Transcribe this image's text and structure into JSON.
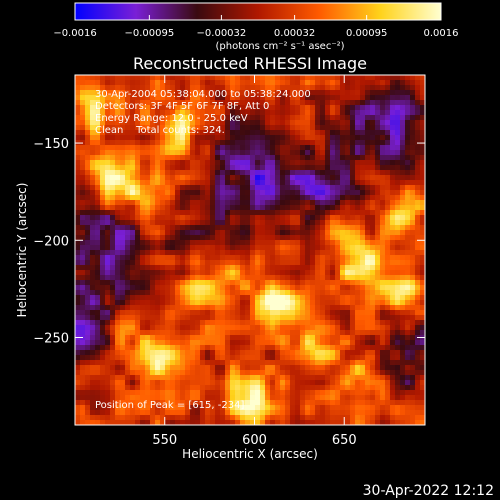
{
  "chart_data": {
    "type": "heatmap",
    "title": "Reconstructed RHESSI Image",
    "xlabel": "Heliocentric X (arcsec)",
    "ylabel": "Heliocentric Y (arcsec)",
    "xlim": [
      500,
      695
    ],
    "ylim": [
      -295,
      -115
    ],
    "x_ticks": [
      {
        "value": 550,
        "label": "550"
      },
      {
        "value": 600,
        "label": "600"
      },
      {
        "value": 650,
        "label": "650"
      }
    ],
    "y_ticks": [
      {
        "value": -150,
        "label": "−150"
      },
      {
        "value": -200,
        "label": "−200"
      },
      {
        "value": -250,
        "label": "−250"
      }
    ],
    "colorbar": {
      "min": -0.0016,
      "max": 0.0016,
      "ticks": [
        {
          "value": -0.0016,
          "label": "−0.0016"
        },
        {
          "value": -0.00095,
          "label": "−0.00095"
        },
        {
          "value": -0.00032,
          "label": "−0.00032"
        },
        {
          "value": 0.00032,
          "label": "0.00032"
        },
        {
          "value": 0.00095,
          "label": "0.00095"
        },
        {
          "value": 0.0016,
          "label": "0.0016"
        }
      ],
      "units": "(photons cm⁻² s⁻¹ asec⁻²)",
      "colors": [
        "#0000ff",
        "#7a1fd6",
        "#3a0a10",
        "#b01800",
        "#ff5a00",
        "#ffd21a",
        "#ffffd0"
      ]
    },
    "grid": false,
    "annotations": {
      "time_range": "30-Apr-2004 05:38:04.000 to 05:38:24.000",
      "detectors": "Detectors: 3F 4F 5F 6F 7F 8F, Att 0",
      "energy_range": "Energy Range: 12.0 - 25.0 keV",
      "clean": "Clean    Total counts: 324.",
      "peak": "Position of Peak = [615, -234]"
    },
    "hot_spots": [
      {
        "x": 615,
        "y": -234,
        "value": 0.0016
      },
      {
        "x": 548,
        "y": -260,
        "value": 0.0012
      },
      {
        "x": 598,
        "y": -280,
        "value": 0.0015
      },
      {
        "x": 660,
        "y": -212,
        "value": 0.0013
      },
      {
        "x": 520,
        "y": -170,
        "value": 0.00115
      },
      {
        "x": 556,
        "y": -143,
        "value": 0.001
      },
      {
        "x": 540,
        "y": -178,
        "value": 0.0011
      },
      {
        "x": 685,
        "y": -228,
        "value": 0.0011
      },
      {
        "x": 682,
        "y": -186,
        "value": 0.001
      },
      {
        "x": 588,
        "y": -213,
        "value": 0.0009
      },
      {
        "x": 635,
        "y": -255,
        "value": 0.00085
      },
      {
        "x": 570,
        "y": -224,
        "value": 0.0008
      },
      {
        "x": 513,
        "y": -134,
        "value": 0.0009
      },
      {
        "x": 644,
        "y": -196,
        "value": 0.0009
      },
      {
        "x": 660,
        "y": -272,
        "value": 0.0007
      },
      {
        "x": 527,
        "y": -246,
        "value": 0.0006
      }
    ],
    "cold_spots": [
      {
        "x": 600,
        "y": -160,
        "value": -0.0012
      },
      {
        "x": 640,
        "y": -175,
        "value": -0.001
      },
      {
        "x": 673,
        "y": -138,
        "value": -0.0011
      },
      {
        "x": 505,
        "y": -240,
        "value": -0.0011
      },
      {
        "x": 520,
        "y": -198,
        "value": -0.0009
      },
      {
        "x": 690,
        "y": -256,
        "value": -0.0008
      },
      {
        "x": 576,
        "y": -196,
        "value": -0.0006
      }
    ]
  },
  "footer": {
    "timestamp": "30-Apr-2022 12:12"
  }
}
